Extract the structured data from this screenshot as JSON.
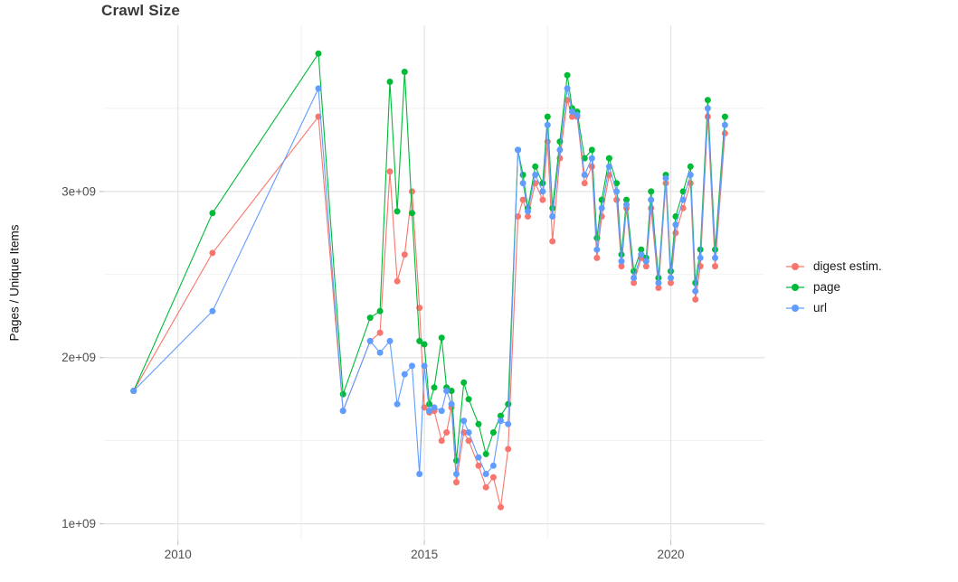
{
  "chart_data": {
    "type": "line",
    "title": "Crawl Size",
    "ylabel": "Pages / Unique Items",
    "xlabel": "",
    "value_scale": 1000000000,
    "legend_position": "right",
    "grid": true,
    "xlim": [
      2008.5,
      2021.9
    ],
    "ylim": [
      0.9,
      4.0
    ],
    "x_ticks": [
      {
        "v": 2010,
        "label": "2010"
      },
      {
        "v": 2015,
        "label": "2015"
      },
      {
        "v": 2020,
        "label": "2020"
      }
    ],
    "x_minor": [
      2012.5,
      2017.5
    ],
    "y_ticks": [
      {
        "v": 1,
        "label": "1e+09"
      },
      {
        "v": 2,
        "label": "2e+09"
      },
      {
        "v": 3,
        "label": "3e+09"
      }
    ],
    "y_minor": [
      1.5,
      2.5,
      3.5
    ],
    "x_years": [
      2009.1,
      2010.7,
      2012.85,
      2013.35,
      2013.9,
      2014.1,
      2014.3,
      2014.45,
      2014.6,
      2014.75,
      2014.9,
      2015.0,
      2015.1,
      2015.2,
      2015.35,
      2015.45,
      2015.55,
      2015.65,
      2015.8,
      2015.9,
      2016.1,
      2016.25,
      2016.4,
      2016.55,
      2016.7,
      2016.9,
      2017.0,
      2017.1,
      2017.25,
      2017.4,
      2017.5,
      2017.6,
      2017.75,
      2017.9,
      2018.0,
      2018.1,
      2018.25,
      2018.4,
      2018.5,
      2018.6,
      2018.75,
      2018.9,
      2019.0,
      2019.1,
      2019.25,
      2019.4,
      2019.5,
      2019.6,
      2019.75,
      2019.9,
      2020.0,
      2020.1,
      2020.25,
      2020.4,
      2020.5,
      2020.6,
      2020.75,
      2020.9,
      2021.1
    ],
    "series": [
      {
        "name": "digest estim.",
        "color": "#F8766D",
        "values_billion": [
          1.8,
          2.63,
          3.45,
          1.68,
          2.1,
          2.15,
          3.12,
          2.46,
          2.62,
          3.0,
          2.3,
          1.7,
          1.67,
          1.68,
          1.5,
          1.55,
          1.7,
          1.25,
          1.55,
          1.5,
          1.35,
          1.22,
          1.28,
          1.1,
          1.45,
          2.85,
          2.95,
          2.85,
          3.05,
          2.95,
          3.3,
          2.7,
          3.2,
          3.55,
          3.45,
          3.45,
          3.05,
          3.15,
          2.6,
          2.85,
          3.1,
          2.95,
          2.55,
          2.9,
          2.45,
          2.6,
          2.55,
          2.9,
          2.42,
          3.05,
          2.45,
          2.75,
          2.9,
          3.05,
          2.35,
          2.55,
          3.45,
          2.55,
          3.35
        ]
      },
      {
        "name": "page",
        "color": "#00BA38",
        "values_billion": [
          1.8,
          2.87,
          3.83,
          1.78,
          2.24,
          2.28,
          3.66,
          2.88,
          3.72,
          2.87,
          2.1,
          2.08,
          1.72,
          1.82,
          2.12,
          1.82,
          1.8,
          1.38,
          1.85,
          1.75,
          1.6,
          1.42,
          1.55,
          1.65,
          1.72,
          3.25,
          3.1,
          2.9,
          3.15,
          3.05,
          3.45,
          2.9,
          3.3,
          3.7,
          3.5,
          3.48,
          3.2,
          3.25,
          2.72,
          2.95,
          3.2,
          3.05,
          2.62,
          2.95,
          2.52,
          2.65,
          2.6,
          3.0,
          2.48,
          3.1,
          2.52,
          2.85,
          3.0,
          3.15,
          2.45,
          2.65,
          3.55,
          2.65,
          3.45
        ]
      },
      {
        "name": "url",
        "color": "#619CFF",
        "values_billion": [
          1.8,
          2.28,
          3.62,
          1.68,
          2.1,
          2.03,
          2.1,
          1.72,
          1.9,
          1.95,
          1.3,
          1.95,
          1.68,
          1.7,
          1.68,
          1.8,
          1.72,
          1.3,
          1.62,
          1.55,
          1.4,
          1.3,
          1.35,
          1.62,
          1.6,
          3.25,
          3.05,
          2.88,
          3.1,
          3.0,
          3.4,
          2.85,
          3.25,
          3.62,
          3.48,
          3.46,
          3.1,
          3.2,
          2.65,
          2.9,
          3.15,
          3.0,
          2.58,
          2.92,
          2.48,
          2.62,
          2.58,
          2.95,
          2.45,
          3.08,
          2.48,
          2.8,
          2.95,
          3.1,
          2.4,
          2.6,
          3.5,
          2.6,
          3.4
        ]
      }
    ]
  }
}
